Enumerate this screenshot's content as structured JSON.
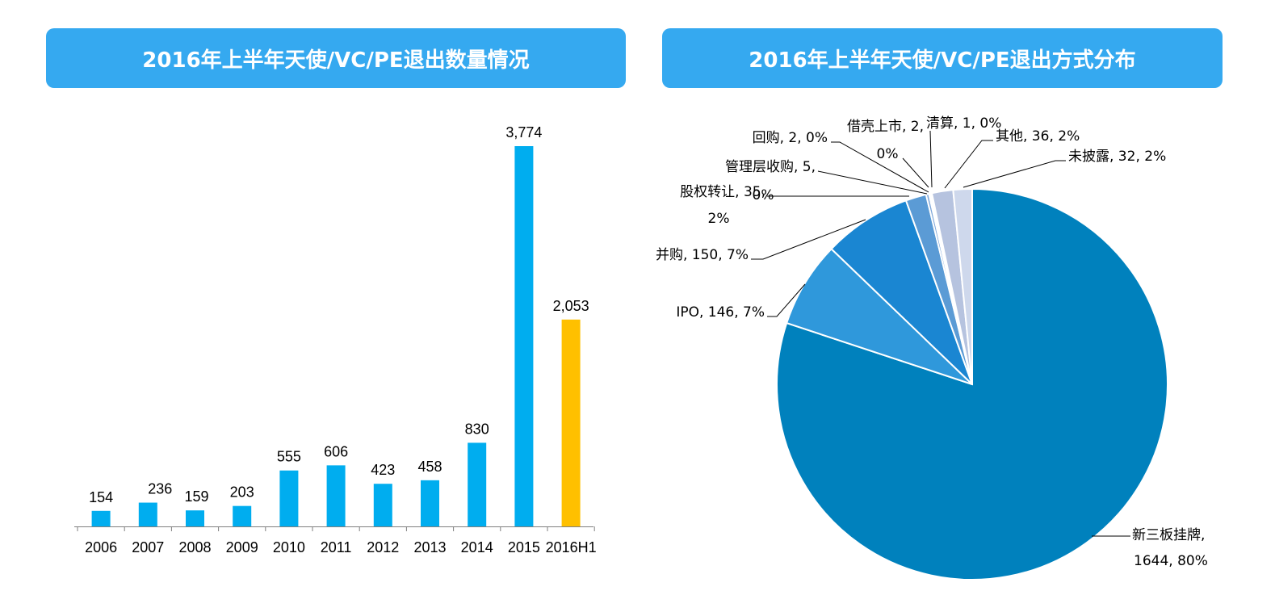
{
  "left_title": "2016年上半年天使/VC/PE退出数量情况",
  "right_title": "2016年上半年天使/VC/PE退出方式分布",
  "colors": {
    "header": "#35a9f0",
    "bar": "#00adef",
    "highlight_bar": "#ffc000"
  },
  "chart_data": [
    {
      "type": "bar",
      "title": "2016年上半年天使/VC/PE退出数量情况",
      "categories": [
        "2006",
        "2007",
        "2008",
        "2009",
        "2010",
        "2011",
        "2012",
        "2013",
        "2014",
        "2015",
        "2016H1"
      ],
      "values": [
        154,
        236,
        159,
        203,
        555,
        606,
        423,
        458,
        830,
        3774,
        2053
      ],
      "value_labels": [
        "154",
        "236",
        "159",
        "203",
        "555",
        "606",
        "423",
        "458",
        "830",
        "3,774",
        "2,053"
      ],
      "highlight_index": 10,
      "ylim": [
        0,
        4000
      ],
      "grid": false
    },
    {
      "type": "pie",
      "title": "2016年上半年天使/VC/PE退出方式分布",
      "slices": [
        {
          "name": "新三板挂牌",
          "value": 1644,
          "label_lines": [
            "新三板挂牌,",
            "1644, 80%"
          ],
          "color": "#0081bd"
        },
        {
          "name": "IPO",
          "value": 146,
          "label_lines": [
            "IPO, 146, 7%"
          ],
          "color": "#2f98db"
        },
        {
          "name": "并购",
          "value": 150,
          "label_lines": [
            "并购, 150, 7%"
          ],
          "color": "#1a86d2"
        },
        {
          "name": "股权转让",
          "value": 35,
          "label_lines": [
            "股权转让, 35,",
            "2%"
          ],
          "color": "#5b9bd5"
        },
        {
          "name": "管理层收购",
          "value": 5,
          "label_lines": [
            "管理层收购, 5,",
            "0%"
          ],
          "color": "#7fa7d9"
        },
        {
          "name": "回购",
          "value": 2,
          "label_lines": [
            "回购, 2, 0%"
          ],
          "color": "#9db8e2"
        },
        {
          "name": "借壳上市",
          "value": 2,
          "label_lines": [
            "借壳上市, 2,",
            "0%"
          ],
          "color": "#b1c4e8"
        },
        {
          "name": "清算",
          "value": 1,
          "label_lines": [
            "清算, 1, 0%"
          ],
          "color": "#c2d0ec"
        },
        {
          "name": "其他",
          "value": 36,
          "label_lines": [
            "其他, 36, 2%"
          ],
          "color": "#b6c3df"
        },
        {
          "name": "未披露",
          "value": 32,
          "label_lines": [
            "未披露, 32, 2%"
          ],
          "color": "#ced8ec"
        }
      ]
    }
  ]
}
